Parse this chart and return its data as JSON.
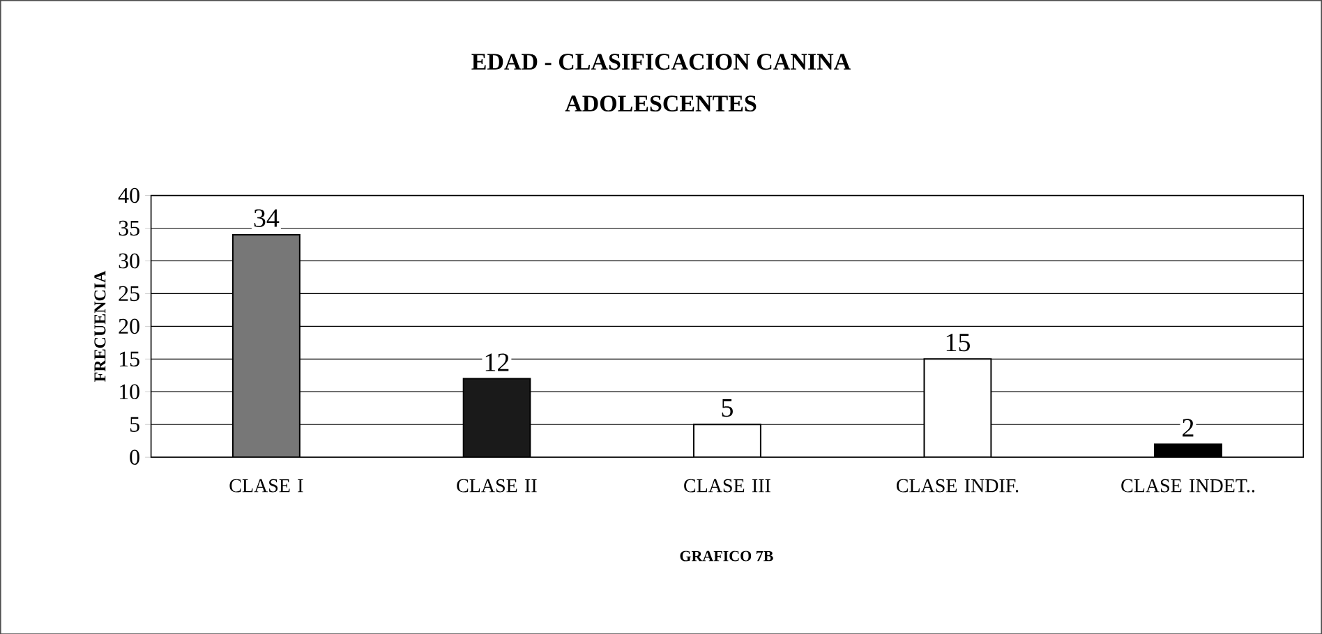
{
  "chart_data": {
    "type": "bar",
    "title": "EDAD - CLASIFICACION CANINA",
    "subtitle": "ADOLESCENTES",
    "xlabel": "GRAFICO 7B",
    "ylabel": "FRECUENCIA",
    "categories": [
      "CLASE I",
      "CLASE II",
      "CLASE III",
      "CLASE INDIF.",
      "CLASE INDET.."
    ],
    "values": [
      34,
      12,
      5,
      15,
      2
    ],
    "colors": [
      "#777777",
      "#1a1a1a",
      "#ffffff",
      "#ffffff",
      "#000000"
    ],
    "ylim": [
      0,
      40
    ],
    "yticks": [
      0,
      5,
      10,
      15,
      20,
      25,
      30,
      35,
      40
    ],
    "grid": "y",
    "data_labels": true
  }
}
